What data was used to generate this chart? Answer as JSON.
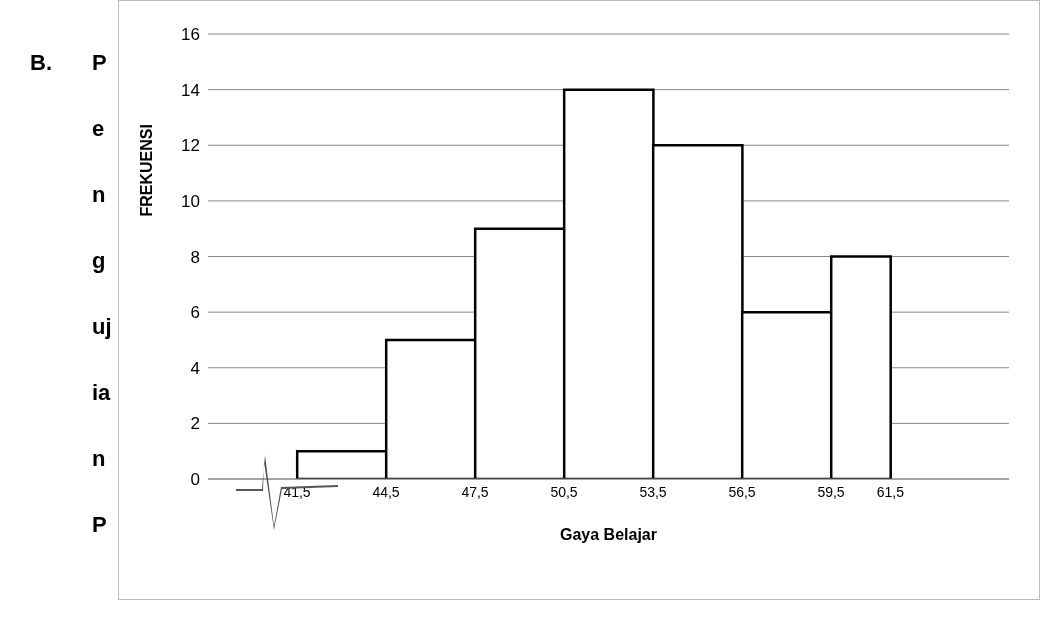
{
  "chart_data": {
    "type": "histogram",
    "xlabel": "Gaya Belajar",
    "ylabel": "FREKUENSI",
    "bins": [
      41.5,
      44.5,
      47.5,
      50.5,
      53.5,
      56.5,
      59.5,
      61.5
    ],
    "values": [
      1,
      5,
      9,
      14,
      12,
      6,
      8
    ],
    "color": "#ffffff",
    "xlim": [
      38.5,
      65.5
    ],
    "xticks": [
      {
        "value": 41.5,
        "label": "41,5"
      },
      {
        "value": 44.5,
        "label": "44,5"
      },
      {
        "value": 47.5,
        "label": "47,5"
      },
      {
        "value": 50.5,
        "label": "50,5"
      },
      {
        "value": 53.5,
        "label": "53,5"
      },
      {
        "value": 56.5,
        "label": "56,5"
      },
      {
        "value": 59.5,
        "label": "59,5"
      },
      {
        "value": 61.5,
        "label": "61,5"
      }
    ],
    "ylim": [
      0,
      16
    ],
    "yticks": [
      0,
      2,
      4,
      6,
      8,
      10,
      12,
      14,
      16
    ],
    "grid": "y",
    "annotations": [
      "B.",
      "P",
      "e",
      "n",
      "g",
      "uj",
      "ia",
      "n",
      "P"
    ]
  }
}
